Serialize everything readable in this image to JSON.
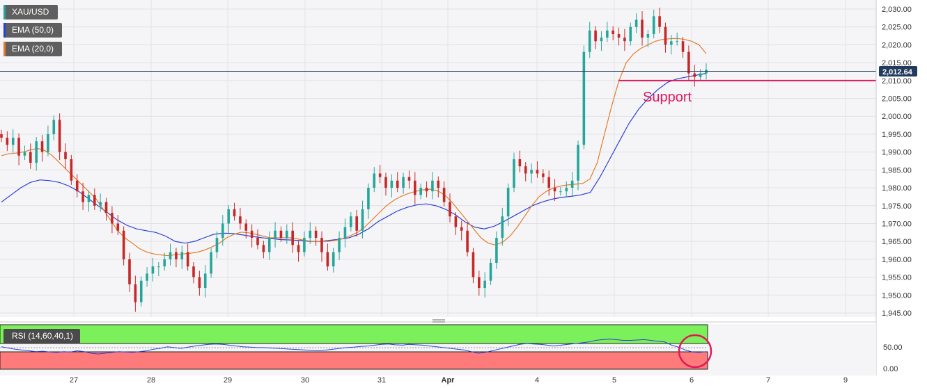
{
  "legend": {
    "symbol": "XAU/USD",
    "ema50": "EMA (50,0)",
    "ema20": "EMA (20,0)",
    "rsi": "RSI (14,60,40,1)"
  },
  "colors": {
    "up": "#26a69a",
    "down": "#c62828",
    "ema50": "#2a3fd6",
    "ema20": "#e37b2c",
    "support": "#e0185a",
    "rsi_line": "#2a3fd6",
    "rsi_over": "#7cf05a",
    "rsi_under": "#ff7b7b",
    "price_label_bg": "#223a5e"
  },
  "annotation": {
    "support_label": "Support"
  },
  "chart_data": {
    "type": "candlestick",
    "x_ticks": [
      "27",
      "28",
      "29",
      "30",
      "31",
      "Apr",
      "4",
      "5",
      "6",
      "7",
      "9"
    ],
    "y_ticks": [
      "2,030.00",
      "2,025.00",
      "2,020.00",
      "2,015.00",
      "2,010.00",
      "2,005.00",
      "2,000.00",
      "1,995.00",
      "1,990.00",
      "1,985.00",
      "1,980.00",
      "1,975.00",
      "1,970.00",
      "1,965.00",
      "1,960.00",
      "1,955.00",
      "1,950.00",
      "1,945.00"
    ],
    "ylim": [
      1944.2,
      2033
    ],
    "current_price": 2012.64,
    "current_price_label": "2,012.64",
    "support_level": 2010.0,
    "ohlc_close_path": [
      1994,
      1992,
      1994,
      1989,
      1990,
      1987,
      1993,
      1990,
      1995,
      1999,
      1990,
      1988,
      1982,
      1979,
      1976,
      1978,
      1975,
      1976,
      1973,
      1970,
      1968,
      1960,
      1953,
      1948,
      1954,
      1956,
      1958,
      1958,
      1960,
      1962,
      1960,
      1962,
      1958,
      1955,
      1952,
      1956,
      1962,
      1966,
      1970,
      1974,
      1972,
      1970,
      1968,
      1966,
      1964,
      1962,
      1966,
      1968,
      1966,
      1968,
      1964,
      1962,
      1966,
      1968,
      1966,
      1962,
      1958,
      1962,
      1966,
      1969,
      1972,
      1968,
      1974,
      1980,
      1984,
      1983,
      1980,
      1982,
      1980,
      1983,
      1982,
      1978,
      1980,
      1979,
      1982,
      1980,
      1976,
      1972,
      1969,
      1968,
      1962,
      1955,
      1952,
      1954,
      1959,
      1966,
      1972,
      1980,
      1988,
      1986,
      1984,
      1985,
      1984,
      1983,
      1980,
      1979,
      1979,
      1980,
      1982,
      1992,
      2018,
      2024,
      2021,
      2022,
      2024,
      2023,
      2022,
      2021,
      2025,
      2027,
      2022,
      2023,
      2028,
      2025,
      2020,
      2021,
      2021,
      2018,
      2012,
      2011,
      2012,
      2013
    ],
    "ema20_path": [
      1989,
      1989.5,
      1989.7,
      1990,
      1990.6,
      1991,
      1990.4,
      1989,
      1987,
      1985,
      1983,
      1981,
      1979,
      1977,
      1974,
      1971,
      1968,
      1966,
      1964.5,
      1963,
      1962,
      1961.5,
      1961.2,
      1961,
      1961.3,
      1961.5,
      1961.7,
      1962,
      1962.6,
      1963.5,
      1964.5,
      1966,
      1967,
      1967.6,
      1967.4,
      1967,
      1966.5,
      1966,
      1966,
      1966,
      1966,
      1965.6,
      1965.2,
      1965,
      1965,
      1965,
      1965.3,
      1965.8,
      1966.6,
      1967.5,
      1969,
      1971,
      1973,
      1975,
      1976.5,
      1977.6,
      1978.4,
      1979,
      1979.4,
      1979.6,
      1979.2,
      1978,
      1976,
      1973.5,
      1971,
      1968.5,
      1966,
      1964.5,
      1964,
      1964.8,
      1966.5,
      1969,
      1972,
      1975,
      1977.5,
      1979,
      1980,
      1980.5,
      1980.8,
      1981,
      1981.2,
      1982.5,
      1987,
      1995,
      2003,
      2010,
      2015,
      2017.5,
      2019,
      2020,
      2021,
      2021.5,
      2021.7,
      2021.8,
      2021.5,
      2021,
      2020,
      2017.5
    ],
    "ema50_path": [
      1976,
      1978,
      1980,
      1981.5,
      1982.2,
      1982,
      1981.5,
      1980.5,
      1979,
      1977,
      1975,
      1973,
      1971,
      1969.5,
      1968.5,
      1968,
      1967.5,
      1966.5,
      1965,
      1964.5,
      1965,
      1966,
      1967,
      1967.3,
      1967.2,
      1966.8,
      1966.4,
      1966,
      1965.8,
      1965.5,
      1965.4,
      1965.2,
      1965,
      1965,
      1965.3,
      1965.6,
      1966,
      1967,
      1968.5,
      1970.5,
      1972,
      1973.5,
      1974.5,
      1975.2,
      1975.5,
      1975,
      1974,
      1972.5,
      1970.5,
      1969,
      1968.5,
      1969.2,
      1970.5,
      1972,
      1973.5,
      1975,
      1976,
      1976.8,
      1977.3,
      1977.6,
      1978,
      1978.7,
      1983,
      1988,
      1993,
      1998,
      2002,
      2005,
      2007.5,
      2009.5,
      2010.5,
      2011,
      2011.5,
      2012
    ],
    "rsi_ylim": [
      0,
      100
    ],
    "rsi_ticks": [
      "50.00",
      "0.00"
    ],
    "rsi_upper": 60,
    "rsi_lower": 40,
    "rsi_path": [
      56,
      53,
      50,
      48,
      46,
      44,
      45,
      43,
      42,
      44,
      43,
      46,
      44,
      40,
      38,
      40,
      42,
      44,
      43,
      42,
      44,
      46,
      50,
      52,
      56,
      54,
      52,
      55,
      58,
      60,
      62,
      63,
      62,
      60,
      58,
      56,
      55,
      54,
      54,
      53,
      52,
      51,
      50,
      49,
      48,
      47,
      46,
      48,
      50,
      52,
      54,
      55,
      57,
      58,
      60,
      62,
      63,
      61,
      60,
      62,
      61,
      60,
      58,
      56,
      54,
      52,
      50,
      48,
      44,
      40,
      42,
      46,
      50,
      54,
      58,
      62,
      64,
      63,
      62,
      60,
      58,
      60,
      62,
      64,
      66,
      68,
      72,
      74,
      75,
      74,
      72,
      72,
      73,
      74,
      72,
      70,
      68,
      60,
      55,
      48,
      43,
      42,
      44
    ]
  }
}
